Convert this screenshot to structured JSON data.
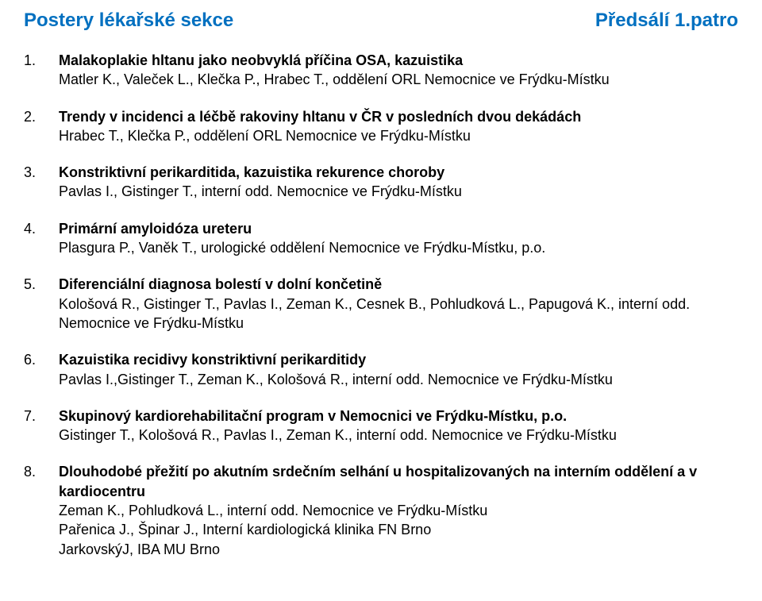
{
  "header": {
    "left": "Postery lékařské sekce",
    "right": "Předsálí 1.patro",
    "color": "#0070c0"
  },
  "items": [
    {
      "num": "1.",
      "title": "Malakoplakie hltanu jako neobvyklá příčina OSA, kazuistika",
      "authors": [
        "Matler K., Valeček L., Klečka P., Hrabec T., oddělení ORL Nemocnice ve Frýdku-Místku"
      ]
    },
    {
      "num": "2.",
      "title": "Trendy v incidenci a léčbě rakoviny hltanu v ČR v posledních dvou dekádách",
      "authors": [
        "Hrabec T., Klečka P., oddělení ORL Nemocnice ve Frýdku-Místku"
      ]
    },
    {
      "num": "3.",
      "title": "Konstriktivní perikarditida, kazuistika rekurence choroby",
      "authors": [
        "Pavlas I., Gistinger T., interní odd. Nemocnice ve Frýdku-Místku"
      ]
    },
    {
      "num": "4.",
      "title": "Primární amyloidóza ureteru",
      "authors": [
        "Plasgura P., Vaněk T., urologické oddělení Nemocnice ve Frýdku-Místku, p.o."
      ]
    },
    {
      "num": "5.",
      "title": "Diferenciální diagnosa bolestí v dolní končetině",
      "authors": [
        "Kološová R., Gistinger T., Pavlas I., Zeman K., Cesnek B., Pohludková L., Papugová K., interní odd. Nemocnice ve Frýdku-Místku"
      ]
    },
    {
      "num": "6.",
      "title": "Kazuistika recidivy konstriktivní perikarditidy",
      "authors": [
        "Pavlas I.,Gistinger T., Zeman K., Kološová R., interní odd. Nemocnice ve Frýdku-Místku"
      ]
    },
    {
      "num": "7.",
      "title": "Skupinový kardiorehabilitační program v Nemocnici ve Frýdku-Místku, p.o.",
      "authors": [
        "Gistinger T., Kološová R., Pavlas I., Zeman K., interní odd. Nemocnice ve Frýdku-Místku"
      ]
    },
    {
      "num": "8.",
      "title": "Dlouhodobé přežití po akutním srdečním selhání u hospitalizovaných na interním oddělení a v kardiocentru",
      "authors": [
        "Zeman K., Pohludková L., interní odd. Nemocnice ve Frýdku-Místku",
        "Pařenica J., Špinar J., Interní kardiologická klinika FN Brno",
        "JarkovskýJ, IBA MU Brno"
      ]
    }
  ]
}
